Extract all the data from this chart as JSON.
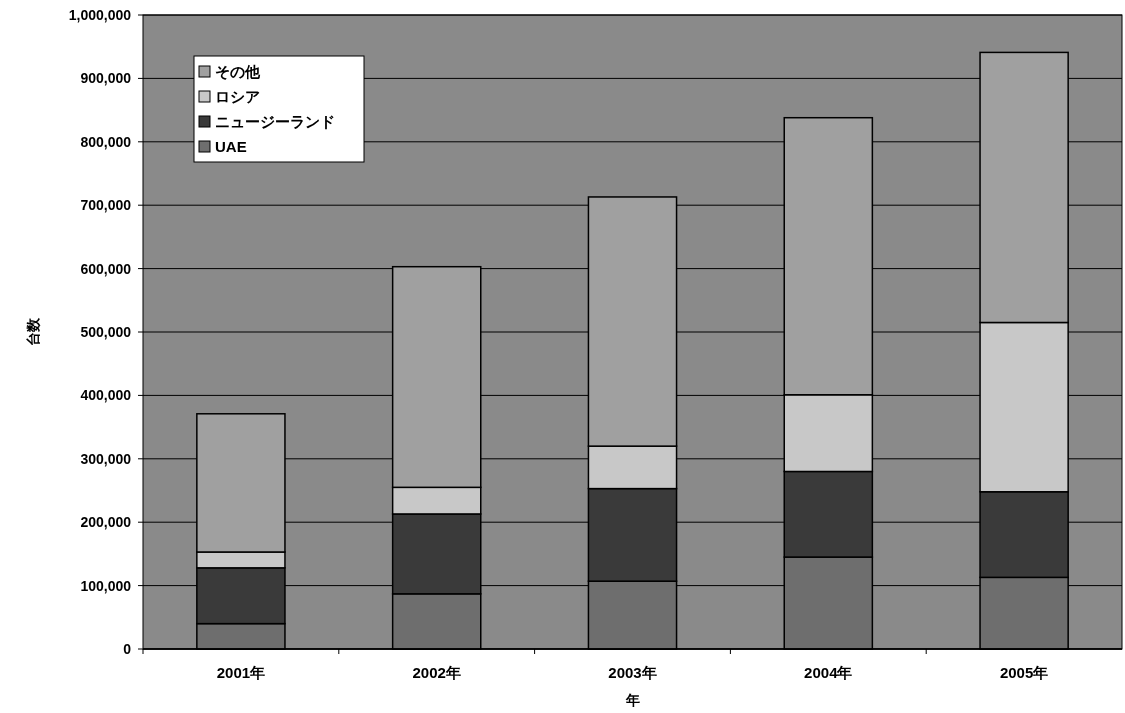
{
  "chart_data": {
    "type": "bar",
    "stacked": true,
    "xlabel": "年",
    "ylabel": "台数",
    "categories": [
      "2001年",
      "2002年",
      "2003年",
      "2004年",
      "2005年"
    ],
    "series": [
      {
        "name": "UAE",
        "color": "#6e6e6e",
        "values": [
          40000,
          87000,
          107000,
          145000,
          113000
        ]
      },
      {
        "name": "ニュージーランド",
        "color": "#3a3a3a",
        "values": [
          88000,
          126000,
          146000,
          135000,
          135000
        ]
      },
      {
        "name": "ロシア",
        "color": "#c8c8c8",
        "values": [
          25000,
          42000,
          67000,
          121000,
          267000
        ]
      },
      {
        "name": "その他",
        "color": "#a0a0a0",
        "values": [
          218000,
          348000,
          393000,
          437000,
          426000
        ]
      }
    ],
    "ylim": [
      0,
      1000000
    ],
    "yticks": [
      {
        "value": 0,
        "label": "0"
      },
      {
        "value": 100000,
        "label": "100,000"
      },
      {
        "value": 200000,
        "label": "200,000"
      },
      {
        "value": 300000,
        "label": "300,000"
      },
      {
        "value": 400000,
        "label": "400,000"
      },
      {
        "value": 500000,
        "label": "500,000"
      },
      {
        "value": 600000,
        "label": "600,000"
      },
      {
        "value": 700000,
        "label": "700,000"
      },
      {
        "value": 800000,
        "label": "800,000"
      },
      {
        "value": 900000,
        "label": "900,000"
      },
      {
        "value": 1000000,
        "label": "1,000,000"
      }
    ],
    "grid": "y",
    "legend": "top left"
  }
}
